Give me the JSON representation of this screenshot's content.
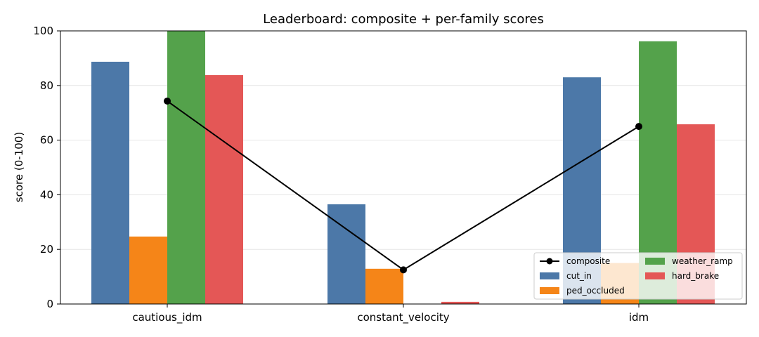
{
  "chart_data": {
    "type": "bar",
    "title": "Leaderboard: composite + per-family scores",
    "xlabel": "",
    "ylabel": "score (0-100)",
    "ylim": [
      0,
      100
    ],
    "yticks": [
      0,
      20,
      40,
      60,
      80,
      100
    ],
    "grid": true,
    "legend_position": "lower-right",
    "categories": [
      "cautious_idm",
      "constant_velocity",
      "idm"
    ],
    "series": [
      {
        "name": "cut_in",
        "color": "#4c78a8",
        "values": [
          88.7,
          36.5,
          83.0
        ]
      },
      {
        "name": "ped_occluded",
        "color": "#f58518",
        "values": [
          24.7,
          12.9,
          15.0
        ]
      },
      {
        "name": "weather_ramp",
        "color": "#54a24b",
        "values": [
          100.0,
          0.0,
          96.2
        ]
      },
      {
        "name": "hard_brake",
        "color": "#e45756",
        "values": [
          83.8,
          0.8,
          65.8
        ]
      }
    ],
    "composite": {
      "name": "composite",
      "color": "#000000",
      "values": [
        74.3,
        12.5,
        65.0
      ]
    }
  }
}
